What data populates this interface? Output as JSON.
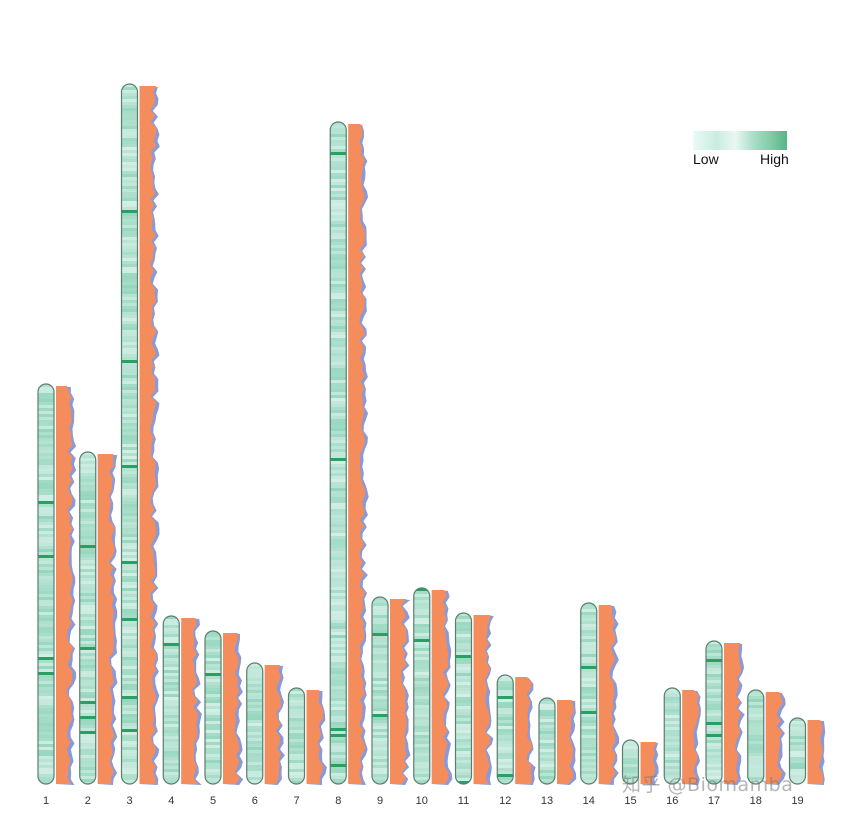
{
  "chart_data": {
    "type": "chromosome density map",
    "title": "",
    "xlabel": "",
    "ylabel": "",
    "categories": [
      "1",
      "2",
      "3",
      "4",
      "5",
      "6",
      "7",
      "8",
      "9",
      "10",
      "11",
      "12",
      "13",
      "14",
      "15",
      "16",
      "17",
      "18",
      "19"
    ],
    "relative_lengths": [
      400,
      332,
      700,
      168,
      153,
      121,
      96,
      662,
      187,
      196,
      171,
      109,
      86,
      181,
      44,
      96,
      143,
      94,
      66
    ],
    "density_scale": {
      "low_color": "#e8f8f6",
      "high_color": "#4cae7d"
    },
    "histogram_colors": {
      "primary": "#f58c5c",
      "secondary": "#8a9ad8"
    },
    "legend": {
      "low_label": "Low",
      "high_label": "High",
      "position": "top-right"
    }
  },
  "watermark": "知乎 @Biomamba"
}
